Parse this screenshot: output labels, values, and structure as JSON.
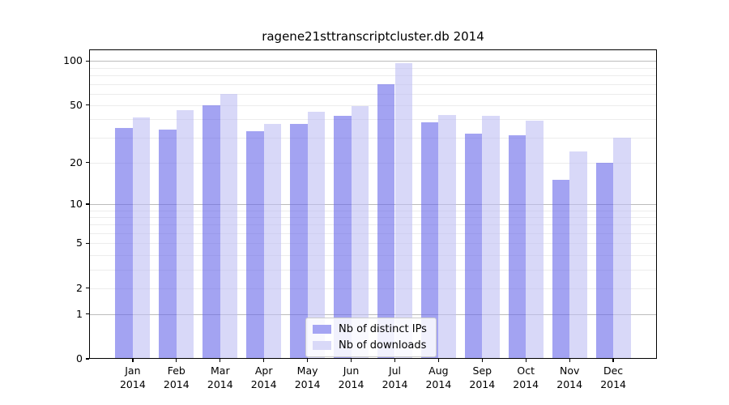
{
  "title": "ragene21sttranscriptcluster.db 2014",
  "chart_data": {
    "type": "bar",
    "title": "ragene21sttranscriptcluster.db 2014",
    "categories": [
      "Jan",
      "Feb",
      "Mar",
      "Apr",
      "May",
      "Jun",
      "Jul",
      "Aug",
      "Sep",
      "Oct",
      "Nov",
      "Dec"
    ],
    "category_year": "2014",
    "series": [
      {
        "name": "Nb of distinct IPs",
        "color": "#a5a5f3",
        "fill": "rgba(102,102,234,0.6)",
        "values": [
          35,
          34,
          50,
          33,
          37,
          42,
          70,
          38,
          32,
          31,
          15,
          20
        ]
      },
      {
        "name": "Nb of downloads",
        "color": "#d9d9f8",
        "fill": "rgba(190,190,243,0.6)",
        "values": [
          41,
          46,
          60,
          37,
          45,
          49,
          97,
          43,
          42,
          39,
          24,
          30
        ]
      }
    ],
    "xlabel": "",
    "ylabel": "",
    "y_scale": "log1p",
    "ylim": [
      0,
      120
    ],
    "y_ticks": [
      0,
      1,
      2,
      5,
      10,
      20,
      50,
      100
    ],
    "y_major_grid": [
      1,
      10,
      100
    ],
    "y_minor_grid": [
      2,
      3,
      4,
      5,
      6,
      7,
      8,
      9,
      20,
      30,
      40,
      50,
      60,
      70,
      80,
      90
    ],
    "grid": true,
    "legend_position": "lower center"
  },
  "colors": {
    "background": "#ffffff",
    "axis": "#000000",
    "grid_major": "#bcbcbc",
    "grid_minor": "#ececec",
    "legend_border": "#cccccc"
  }
}
